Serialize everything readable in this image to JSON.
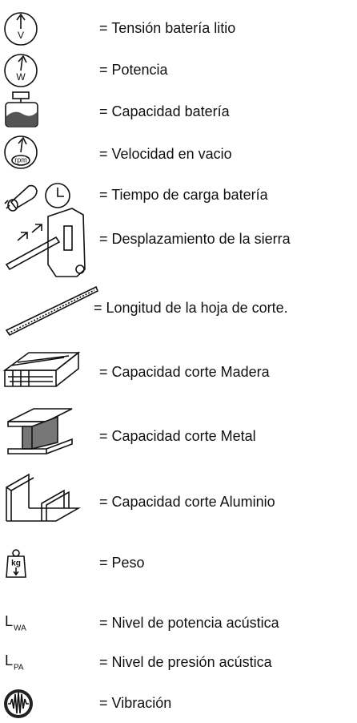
{
  "items": [
    {
      "icon_label": "V",
      "text": "= Tensión batería litio"
    },
    {
      "icon_label": "W",
      "text": "= Potencia"
    },
    {
      "text": "= Capacidad batería"
    },
    {
      "icon_label": "rpm",
      "text": "= Velocidad en vacio"
    },
    {
      "text": "= Tiempo de carga batería"
    },
    {
      "text": "= Desplazamiento de la sierra"
    },
    {
      "text": "= Longitud de la hoja de corte."
    },
    {
      "text": "= Capacidad corte Madera"
    },
    {
      "text": "= Capacidad corte Metal"
    },
    {
      "text": "= Capacidad corte Aluminio"
    },
    {
      "icon_label": "kg",
      "text": "= Peso"
    },
    {
      "symbol": "L",
      "symbol_sub": "WA",
      "text": "= Nivel de potencia acústica"
    },
    {
      "symbol": "L",
      "symbol_sub": "PA",
      "text": "= Nivel de presión acústica"
    },
    {
      "text": "= Vibración"
    }
  ]
}
